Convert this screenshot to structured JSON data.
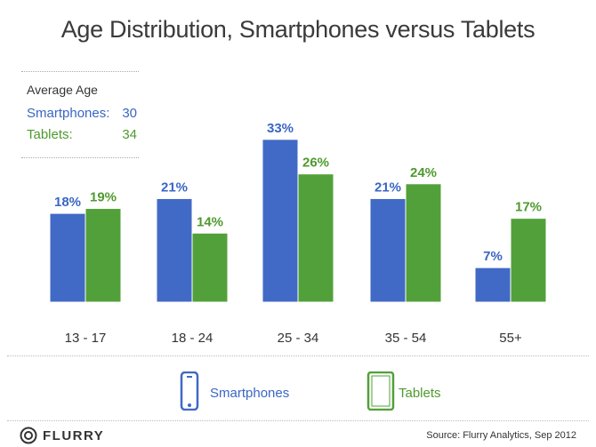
{
  "title": "Age Distribution, Smartphones versus Tablets",
  "average_age": {
    "heading": "Average Age",
    "smartphones_label": "Smartphones:",
    "smartphones_value": "30",
    "tablets_label": "Tablets:",
    "tablets_value": "34"
  },
  "legend": {
    "smartphones": "Smartphones",
    "tablets": "Tablets"
  },
  "footer": {
    "logo": "FLURRY",
    "source": "Source: Flurry Analytics, Sep 2012"
  },
  "colors": {
    "smartphones": "#4169c6",
    "tablets": "#52a03a"
  },
  "chart_data": {
    "type": "bar",
    "title": "Age Distribution, Smartphones versus Tablets",
    "xlabel": "",
    "ylabel": "",
    "ylim": [
      0,
      40
    ],
    "grid": false,
    "categories": [
      "13 - 17",
      "18 - 24",
      "25 - 34",
      "35 - 54",
      "55+"
    ],
    "series": [
      {
        "name": "Smartphones",
        "values": [
          18,
          21,
          33,
          21,
          7
        ],
        "labels": [
          "18%",
          "21%",
          "33%",
          "21%",
          "7%"
        ]
      },
      {
        "name": "Tablets",
        "values": [
          19,
          14,
          26,
          24,
          17
        ],
        "labels": [
          "19%",
          "14%",
          "26%",
          "24%",
          "17%"
        ]
      }
    ]
  }
}
